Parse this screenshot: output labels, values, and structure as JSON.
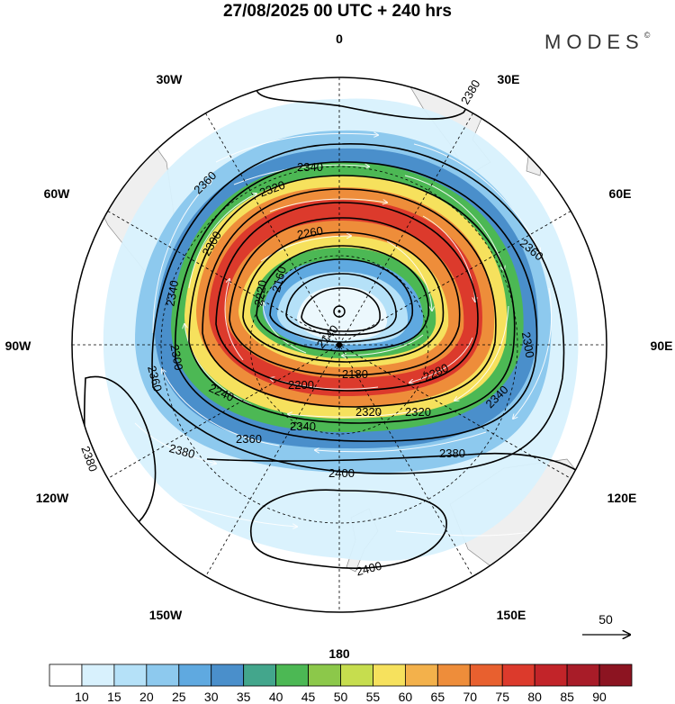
{
  "header": {
    "title": "27/08/2025  00 UTC  + 240 hrs",
    "brand": "MODES",
    "brand_mark": "©"
  },
  "map": {
    "projection": "south-polar-stereographic",
    "longitude_labels": [
      {
        "text": "0",
        "lon": 0
      },
      {
        "text": "30E",
        "lon": 30
      },
      {
        "text": "60E",
        "lon": 60
      },
      {
        "text": "90E",
        "lon": 90
      },
      {
        "text": "120E",
        "lon": 120
      },
      {
        "text": "150E",
        "lon": 150
      },
      {
        "text": "180",
        "lon": 180
      },
      {
        "text": "150W",
        "lon": -150
      },
      {
        "text": "120W",
        "lon": -120
      },
      {
        "text": "90W",
        "lon": -90
      },
      {
        "text": "60W",
        "lon": -60
      },
      {
        "text": "30W",
        "lon": -30
      }
    ],
    "contour_labels": [
      "2380",
      "2360",
      "2340",
      "2320",
      "2300",
      "2280",
      "2260",
      "2240",
      "2220",
      "2200",
      "2180",
      "2160",
      "2140",
      "2400"
    ],
    "wind_reference": {
      "value": "50"
    },
    "colorbar": {
      "ticks": [
        "10",
        "15",
        "20",
        "25",
        "30",
        "35",
        "40",
        "45",
        "50",
        "55",
        "60",
        "65",
        "70",
        "75",
        "80",
        "85",
        "90"
      ],
      "colors": [
        "#ffffff",
        "#d8f1fd",
        "#b5e1f8",
        "#8dc9ee",
        "#5fa9e0",
        "#4a8fcb",
        "#43a68c",
        "#4cb854",
        "#8cc84a",
        "#c6dd4e",
        "#f6e15d",
        "#f3b14b",
        "#ee8d3a",
        "#e8602f",
        "#dc3a2c",
        "#c22429",
        "#a81c28",
        "#8c1421"
      ]
    }
  }
}
